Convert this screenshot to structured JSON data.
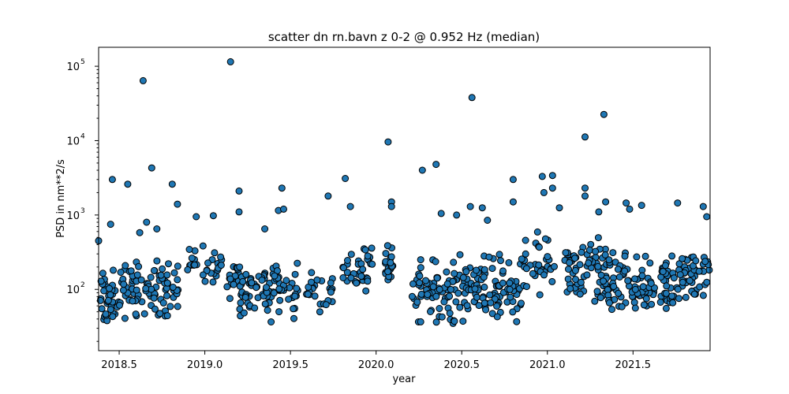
{
  "chart_data": {
    "type": "scatter",
    "title": "scatter dn rn.bavn z 0-2 @ 0.952 Hz (median)",
    "xlabel": "year",
    "ylabel": "PSD in nm**2/s",
    "xlim": [
      2018.38,
      2021.95
    ],
    "ylim": [
      15,
      180000
    ],
    "yscale": "log",
    "grid": false,
    "legend": "none",
    "x_ticks": [
      2018.5,
      2019.0,
      2019.5,
      2020.0,
      2020.5,
      2021.0,
      2021.5
    ],
    "x_tick_labels": [
      "2018.5",
      "2019.0",
      "2019.5",
      "2020.0",
      "2020.5",
      "2021.0",
      "2021.5"
    ],
    "y_ticks": [
      {
        "value": 100,
        "base": "10",
        "exp": "2"
      },
      {
        "value": 1000,
        "base": "10",
        "exp": "3"
      },
      {
        "value": 10000,
        "base": "10",
        "exp": "4"
      },
      {
        "value": 100000,
        "base": "10",
        "exp": "5"
      }
    ],
    "marker_color": "#1f77b4",
    "marker_edge": "#000000",
    "bands": [
      {
        "x0": 2018.38,
        "x1": 2018.5,
        "lo": 20,
        "hi": 250,
        "n": 40
      },
      {
        "x0": 2018.5,
        "x1": 2018.85,
        "lo": 30,
        "hi": 350,
        "n": 90
      },
      {
        "x0": 2018.88,
        "x1": 2019.1,
        "lo": 90,
        "hi": 450,
        "n": 30
      },
      {
        "x0": 2019.13,
        "x1": 2019.2,
        "lo": 65,
        "hi": 300,
        "n": 18
      },
      {
        "x0": 2019.2,
        "x1": 2019.55,
        "lo": 30,
        "hi": 350,
        "n": 90
      },
      {
        "x0": 2019.58,
        "x1": 2019.75,
        "lo": 45,
        "hi": 200,
        "n": 25
      },
      {
        "x0": 2019.8,
        "x1": 2019.98,
        "lo": 80,
        "hi": 500,
        "n": 35
      },
      {
        "x0": 2020.05,
        "x1": 2020.1,
        "lo": 80,
        "hi": 550,
        "n": 22
      },
      {
        "x0": 2020.2,
        "x1": 2020.55,
        "lo": 25,
        "hi": 400,
        "n": 90
      },
      {
        "x0": 2020.55,
        "x1": 2020.85,
        "lo": 25,
        "hi": 400,
        "n": 80
      },
      {
        "x0": 2020.85,
        "x1": 2021.05,
        "lo": 60,
        "hi": 700,
        "n": 35
      },
      {
        "x0": 2021.1,
        "x1": 2021.35,
        "lo": 40,
        "hi": 700,
        "n": 70
      },
      {
        "x0": 2021.35,
        "x1": 2021.75,
        "lo": 25,
        "hi": 450,
        "n": 110
      },
      {
        "x0": 2021.75,
        "x1": 2021.95,
        "lo": 50,
        "hi": 450,
        "n": 50
      }
    ],
    "points": [
      [
        2018.38,
        450
      ],
      [
        2018.45,
        750
      ],
      [
        2018.46,
        3000
      ],
      [
        2018.55,
        2600
      ],
      [
        2018.62,
        580
      ],
      [
        2018.64,
        64000
      ],
      [
        2018.66,
        800
      ],
      [
        2018.69,
        4300
      ],
      [
        2018.72,
        650
      ],
      [
        2018.81,
        2600
      ],
      [
        2018.84,
        1400
      ],
      [
        2018.95,
        950
      ],
      [
        2019.05,
        980
      ],
      [
        2019.15,
        115000
      ],
      [
        2019.2,
        2100
      ],
      [
        2019.2,
        1100
      ],
      [
        2019.35,
        650
      ],
      [
        2019.45,
        2300
      ],
      [
        2019.43,
        1150
      ],
      [
        2019.46,
        1200
      ],
      [
        2019.72,
        1800
      ],
      [
        2019.82,
        3100
      ],
      [
        2019.85,
        1300
      ],
      [
        2020.07,
        9600
      ],
      [
        2020.09,
        1500
      ],
      [
        2020.09,
        1300
      ],
      [
        2020.27,
        4000
      ],
      [
        2020.35,
        4800
      ],
      [
        2020.38,
        1050
      ],
      [
        2020.47,
        1000
      ],
      [
        2020.55,
        1300
      ],
      [
        2020.56,
        38000
      ],
      [
        2020.62,
        1250
      ],
      [
        2020.65,
        850
      ],
      [
        2020.8,
        3000
      ],
      [
        2020.8,
        1500
      ],
      [
        2020.97,
        3300
      ],
      [
        2020.98,
        2000
      ],
      [
        2021.03,
        3400
      ],
      [
        2021.03,
        2300
      ],
      [
        2021.07,
        1250
      ],
      [
        2021.22,
        11200
      ],
      [
        2021.22,
        2300
      ],
      [
        2021.22,
        1800
      ],
      [
        2021.3,
        1100
      ],
      [
        2021.33,
        22500
      ],
      [
        2021.34,
        1500
      ],
      [
        2021.46,
        1450
      ],
      [
        2021.48,
        1200
      ],
      [
        2021.55,
        1350
      ],
      [
        2021.76,
        1450
      ],
      [
        2021.91,
        1300
      ],
      [
        2021.93,
        950
      ]
    ]
  }
}
